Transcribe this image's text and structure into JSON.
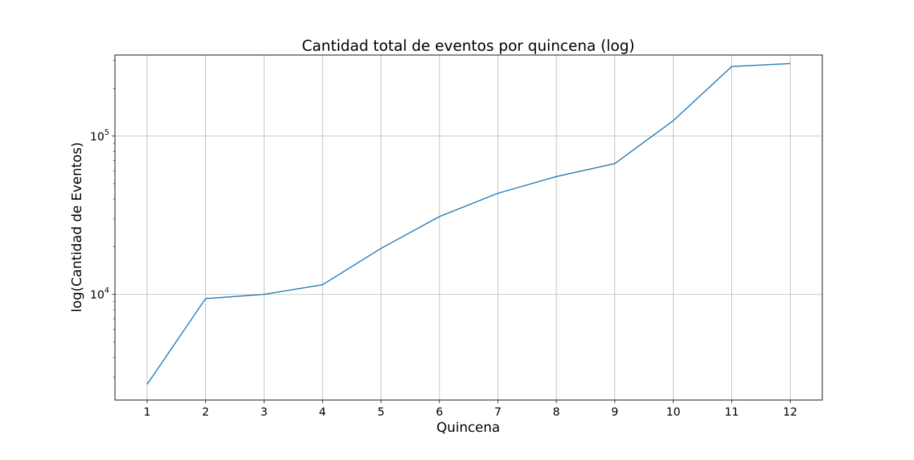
{
  "chart_data": {
    "type": "line",
    "title": "Cantidad total de eventos por quincena (log)",
    "xlabel": "Quincena",
    "ylabel": "log(Cantidad de Eventos)",
    "yscale": "log",
    "grid": true,
    "xlim": [
      0.45,
      12.55
    ],
    "ylim": [
      2150,
      325000
    ],
    "x": [
      1,
      2,
      3,
      4,
      5,
      6,
      7,
      8,
      9,
      10,
      11,
      12
    ],
    "xticks": [
      "1",
      "2",
      "3",
      "4",
      "5",
      "6",
      "7",
      "8",
      "9",
      "10",
      "11",
      "12"
    ],
    "yticks": [
      {
        "value": 10000,
        "base": "10",
        "exp": "4"
      },
      {
        "value": 100000,
        "base": "10",
        "exp": "5"
      }
    ],
    "series": [
      {
        "color": "#1f77b4",
        "values": [
          2700,
          9400,
          10000,
          11500,
          19500,
          31000,
          43500,
          55500,
          67000,
          125000,
          275000,
          287000
        ]
      }
    ]
  }
}
